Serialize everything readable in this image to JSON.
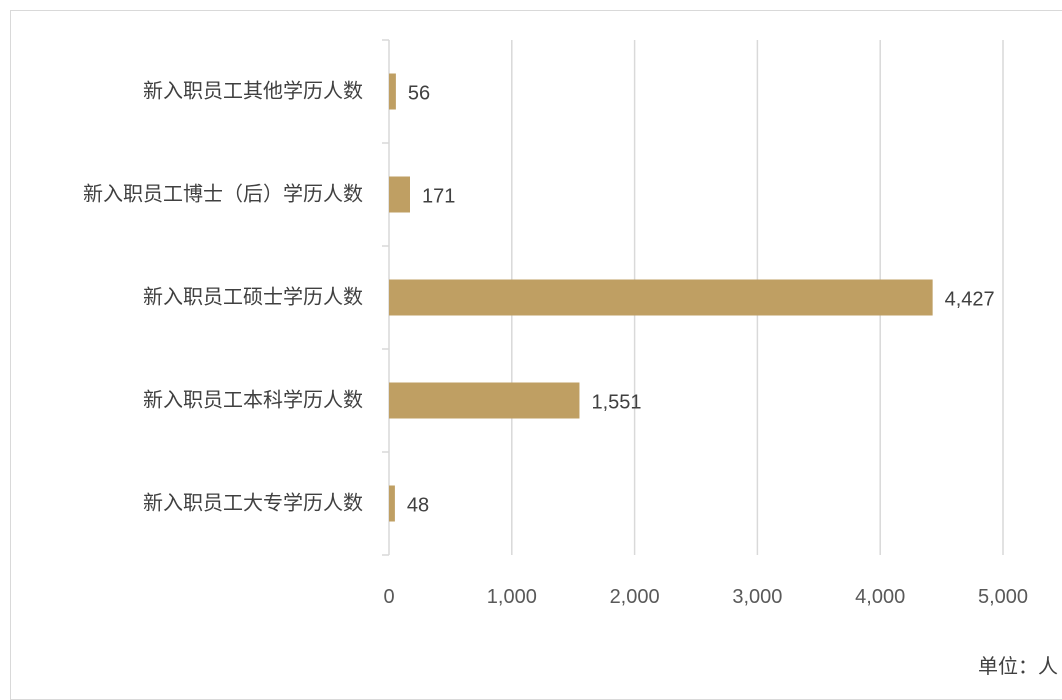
{
  "chart_data": {
    "type": "bar",
    "orientation": "horizontal",
    "categories": [
      "新入职员工其他学历人数",
      "新入职员工博士（后）学历人数",
      "新入职员工硕士学历人数",
      "新入职员工本科学历人数",
      "新入职员工大专学历人数"
    ],
    "values": [
      56,
      171,
      4427,
      1551,
      48
    ],
    "value_labels": [
      "56",
      "171",
      "4,427",
      "1,551",
      "48"
    ],
    "xlim": [
      0,
      5000
    ],
    "x_ticks": [
      0,
      1000,
      2000,
      3000,
      4000,
      5000
    ],
    "x_tick_labels": [
      "0",
      "1,000",
      "2,000",
      "3,000",
      "4,000",
      "5,000"
    ],
    "grid": "vertical",
    "bar_color": "#BF9F63",
    "grid_color": "#D9D9D9",
    "unit_label": "单位：人"
  }
}
